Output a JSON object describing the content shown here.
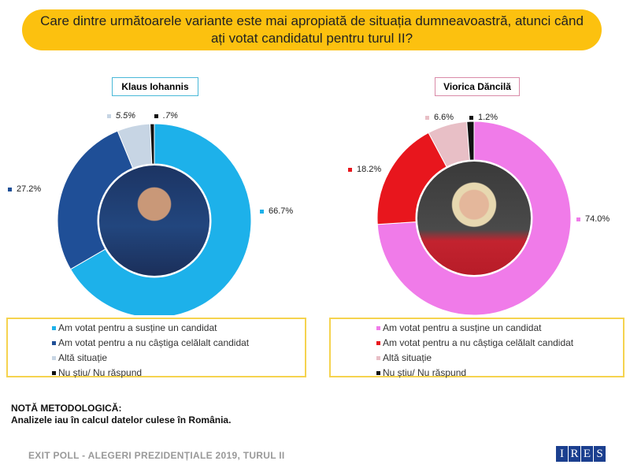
{
  "title": "Care dintre următoarele variante este mai apropiată de situația dumneavoastră, atunci când ați votat candidatul pentru turul II?",
  "chart_data": [
    {
      "type": "pie",
      "variant": "donut",
      "candidate": "Klaus Iohannis",
      "categories": [
        "Am votat pentru a susține un candidat",
        "Am votat pentru a nu câștiga celălalt candidat",
        "Altă situație",
        "Nu știu/ Nu răspund"
      ],
      "values": [
        66.7,
        27.2,
        5.5,
        0.7
      ],
      "labels": [
        "66.7%",
        "27.2%",
        "5.5%",
        ".7%"
      ],
      "colors": [
        "#1db1ea",
        "#1f4f97",
        "#c7d5e4",
        "#111111"
      ]
    },
    {
      "type": "pie",
      "variant": "donut",
      "candidate": "Viorica Dăncilă",
      "categories": [
        "Am votat pentru a susține un candidat",
        "Am votat pentru a nu câștiga celălalt candidat",
        "Altă situație",
        "Nu știu/ Nu răspund"
      ],
      "values": [
        74.0,
        18.2,
        6.6,
        1.2
      ],
      "labels": [
        "74.0%",
        "18.2%",
        "6.6%",
        "1.2%"
      ],
      "colors": [
        "#f07be9",
        "#e8161d",
        "#e8bfc6",
        "#111111"
      ]
    }
  ],
  "note": {
    "heading": "NOTĂ METODOLOGICĂ:",
    "text": "Analizele iau în calcul datelor culese în România."
  },
  "footer": "EXIT POLL - ALEGERI PREZIDENȚIALE 2019, TURUL II",
  "logo": "IRES"
}
